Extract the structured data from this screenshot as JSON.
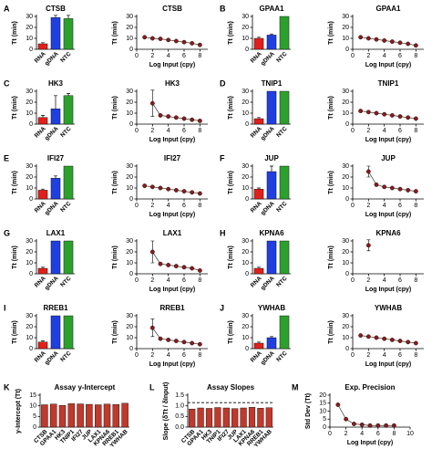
{
  "chart_data": [
    {
      "type": "bar",
      "panel": "A",
      "title": "CTSB",
      "ylabel": "Tt (min)",
      "categories": [
        "RNA",
        "gDNA",
        "NTC"
      ],
      "values": [
        5,
        29,
        28
      ],
      "errors": [
        1,
        2,
        3
      ],
      "colors": [
        "#e0201b",
        "#1f3fe0",
        "#2ca02c"
      ],
      "ylim": [
        0,
        30
      ],
      "yticks": [
        0,
        10,
        20,
        30
      ]
    },
    {
      "type": "line",
      "title": "CTSB",
      "xlabel": "Log Input (cpy)",
      "ylabel": "Tt (min)",
      "x": [
        1,
        2,
        3,
        4,
        5,
        6,
        7,
        8
      ],
      "values": [
        11,
        10,
        9.5,
        8.5,
        7.5,
        6.5,
        5.5,
        4
      ],
      "color": "#8b1a1a",
      "xlim": [
        0,
        9
      ],
      "xticks": [
        0,
        2,
        4,
        6,
        8
      ],
      "ylim": [
        0,
        30
      ],
      "yticks": [
        0,
        10,
        20,
        30
      ]
    },
    {
      "type": "bar",
      "panel": "B",
      "title": "GPAA1",
      "ylabel": "Tt (min)",
      "categories": [
        "RNA",
        "gDNA",
        "NTC"
      ],
      "values": [
        10,
        13,
        30
      ],
      "errors": [
        1,
        1,
        0
      ],
      "colors": [
        "#e0201b",
        "#1f3fe0",
        "#2ca02c"
      ],
      "ylim": [
        0,
        30
      ],
      "yticks": [
        0,
        10,
        20,
        30
      ]
    },
    {
      "type": "line",
      "title": "GPAA1",
      "xlabel": "Log Input (cpy)",
      "ylabel": "Tt (min)",
      "x": [
        1,
        2,
        3,
        4,
        5,
        6,
        7,
        8
      ],
      "values": [
        11,
        10,
        9,
        8,
        7,
        6,
        5,
        3.5
      ],
      "color": "#8b1a1a",
      "xlim": [
        0,
        9
      ],
      "xticks": [
        0,
        2,
        4,
        6,
        8
      ],
      "ylim": [
        0,
        30
      ],
      "yticks": [
        0,
        10,
        20,
        30
      ]
    },
    {
      "type": "bar",
      "panel": "C",
      "title": "HK3",
      "ylabel": "Tt (min)",
      "categories": [
        "RNA",
        "gDNA",
        "NTC"
      ],
      "values": [
        6,
        14,
        26
      ],
      "errors": [
        2,
        12,
        2
      ],
      "colors": [
        "#e0201b",
        "#1f3fe0",
        "#2ca02c"
      ],
      "ylim": [
        0,
        30
      ],
      "yticks": [
        0,
        10,
        20,
        30
      ]
    },
    {
      "type": "line",
      "title": "HK3",
      "xlabel": "Log Input (cpy)",
      "ylabel": "Tt (min)",
      "x": [
        2,
        3,
        4,
        5,
        6,
        7,
        8
      ],
      "values": [
        19,
        8,
        7,
        6,
        5,
        4,
        3
      ],
      "errors": [
        12,
        null,
        null,
        null,
        null,
        null,
        null
      ],
      "color": "#8b1a1a",
      "xlim": [
        0,
        9
      ],
      "xticks": [
        0,
        2,
        4,
        6,
        8
      ],
      "ylim": [
        0,
        30
      ],
      "yticks": [
        0,
        10,
        20,
        30
      ]
    },
    {
      "type": "bar",
      "panel": "D",
      "title": "TNIP1",
      "ylabel": "Tt (min)",
      "categories": [
        "RNA",
        "gDNA",
        "NTC"
      ],
      "values": [
        5,
        30,
        30
      ],
      "errors": [
        1,
        0,
        0
      ],
      "colors": [
        "#e0201b",
        "#1f3fe0",
        "#2ca02c"
      ],
      "ylim": [
        0,
        30
      ],
      "yticks": [
        0,
        10,
        20,
        30
      ]
    },
    {
      "type": "line",
      "title": "TNIP1",
      "xlabel": "Log Input (cpy)",
      "ylabel": "Tt (min)",
      "x": [
        1,
        2,
        3,
        4,
        5,
        6,
        7,
        8
      ],
      "values": [
        12,
        11,
        10,
        9,
        8,
        7,
        6,
        5
      ],
      "color": "#8b1a1a",
      "xlim": [
        0,
        9
      ],
      "xticks": [
        0,
        2,
        4,
        6,
        8
      ],
      "ylim": [
        0,
        30
      ],
      "yticks": [
        0,
        10,
        20,
        30
      ]
    },
    {
      "type": "bar",
      "panel": "E",
      "title": "IFI27",
      "ylabel": "Tt (min)",
      "categories": [
        "RNA",
        "gDNA",
        "NTC"
      ],
      "values": [
        8,
        19,
        30
      ],
      "errors": [
        1,
        2,
        0
      ],
      "colors": [
        "#e0201b",
        "#1f3fe0",
        "#2ca02c"
      ],
      "ylim": [
        0,
        30
      ],
      "yticks": [
        0,
        10,
        20,
        30
      ]
    },
    {
      "type": "line",
      "title": "IFI27",
      "xlabel": "Log Input (cpy)",
      "ylabel": "Tt (min)",
      "x": [
        1,
        2,
        3,
        4,
        5,
        6,
        7,
        8
      ],
      "values": [
        12,
        11,
        10,
        9,
        8,
        7,
        6,
        5
      ],
      "color": "#8b1a1a",
      "xlim": [
        0,
        9
      ],
      "xticks": [
        0,
        2,
        4,
        6,
        8
      ],
      "ylim": [
        0,
        30
      ],
      "yticks": [
        0,
        10,
        20,
        30
      ]
    },
    {
      "type": "bar",
      "panel": "F",
      "title": "JUP",
      "ylabel": "Tt (min)",
      "categories": [
        "RNA",
        "gDNA",
        "NTC"
      ],
      "values": [
        9,
        25,
        30
      ],
      "errors": [
        1,
        5,
        0
      ],
      "colors": [
        "#e0201b",
        "#1f3fe0",
        "#2ca02c"
      ],
      "ylim": [
        0,
        30
      ],
      "yticks": [
        0,
        10,
        20,
        30
      ]
    },
    {
      "type": "line",
      "title": "JUP",
      "xlabel": "Log Input (cpy)",
      "ylabel": "Tt (min)",
      "x": [
        2,
        3,
        4,
        5,
        6,
        7,
        8
      ],
      "values": [
        25,
        13,
        11,
        10,
        9,
        8,
        7
      ],
      "errors": [
        5,
        null,
        null,
        null,
        null,
        null,
        null
      ],
      "color": "#8b1a1a",
      "xlim": [
        0,
        9
      ],
      "xticks": [
        0,
        2,
        4,
        6,
        8
      ],
      "ylim": [
        0,
        30
      ],
      "yticks": [
        0,
        10,
        20,
        30
      ]
    },
    {
      "type": "bar",
      "panel": "G",
      "title": "LAX1",
      "ylabel": "Tt (min)",
      "categories": [
        "RNA",
        "gDNA",
        "NTC"
      ],
      "values": [
        5,
        30,
        30
      ],
      "errors": [
        1,
        0,
        0
      ],
      "colors": [
        "#e0201b",
        "#1f3fe0",
        "#2ca02c"
      ],
      "ylim": [
        0,
        30
      ],
      "yticks": [
        0,
        10,
        20,
        30
      ]
    },
    {
      "type": "line",
      "title": "LAX1",
      "xlabel": "Log Input (cpy)",
      "ylabel": "Tt (min)",
      "x": [
        2,
        3,
        4,
        5,
        6,
        7,
        8
      ],
      "values": [
        20,
        9,
        8,
        7,
        6,
        5,
        3
      ],
      "errors": [
        10,
        null,
        null,
        null,
        null,
        null,
        null
      ],
      "color": "#8b1a1a",
      "xlim": [
        0,
        9
      ],
      "xticks": [
        0,
        2,
        4,
        6,
        8
      ],
      "ylim": [
        0,
        30
      ],
      "yticks": [
        0,
        10,
        20,
        30
      ]
    },
    {
      "type": "bar",
      "panel": "H",
      "title": "KPNA6",
      "ylabel": "Tt (min)",
      "categories": [
        "RNA",
        "gDNA",
        "NTC"
      ],
      "values": [
        5,
        30,
        30
      ],
      "errors": [
        1,
        0,
        0
      ],
      "colors": [
        "#e0201b",
        "#1f3fe0",
        "#2ca02c"
      ],
      "ylim": [
        0,
        30
      ],
      "yticks": [
        0,
        10,
        20,
        30
      ]
    },
    {
      "type": "line",
      "title": "KPNA6",
      "xlabel": "Log Input (cpy)",
      "ylabel": "Tt (min)",
      "x": [
        2
      ],
      "values": [
        26
      ],
      "errors": [
        5
      ],
      "color": "#8b1a1a",
      "xlim": [
        0,
        9
      ],
      "xticks": [
        0,
        2,
        4,
        6,
        8
      ],
      "ylim": [
        0,
        30
      ],
      "yticks": [
        0,
        10,
        20,
        30
      ]
    },
    {
      "type": "bar",
      "panel": "I",
      "title": "RREB1",
      "ylabel": "Tt (min)",
      "categories": [
        "RNA",
        "gDNA",
        "NTC"
      ],
      "values": [
        6,
        30,
        30
      ],
      "errors": [
        1,
        0,
        0
      ],
      "colors": [
        "#e0201b",
        "#1f3fe0",
        "#2ca02c"
      ],
      "ylim": [
        0,
        30
      ],
      "yticks": [
        0,
        10,
        20,
        30
      ]
    },
    {
      "type": "line",
      "title": "RREB1",
      "xlabel": "Log Input (cpy)",
      "ylabel": "Tt (min)",
      "x": [
        2,
        3,
        4,
        5,
        6,
        7,
        8
      ],
      "values": [
        19,
        9,
        8,
        7,
        6,
        5,
        4
      ],
      "errors": [
        8,
        null,
        null,
        null,
        null,
        null,
        null
      ],
      "color": "#8b1a1a",
      "xlim": [
        0,
        9
      ],
      "xticks": [
        0,
        2,
        4,
        6,
        8
      ],
      "ylim": [
        0,
        30
      ],
      "yticks": [
        0,
        10,
        20,
        30
      ]
    },
    {
      "type": "bar",
      "panel": "J",
      "title": "YWHAB",
      "ylabel": "Tt (min)",
      "categories": [
        "RNA",
        "gDNA",
        "NTC"
      ],
      "values": [
        5,
        10,
        30
      ],
      "errors": [
        1,
        1,
        0
      ],
      "colors": [
        "#e0201b",
        "#1f3fe0",
        "#2ca02c"
      ],
      "ylim": [
        0,
        30
      ],
      "yticks": [
        0,
        10,
        20,
        30
      ]
    },
    {
      "type": "line",
      "title": "YWHAB",
      "xlabel": "Log Input (cpy)",
      "ylabel": "Tt (min)",
      "x": [
        1,
        2,
        3,
        4,
        5,
        6,
        7,
        8
      ],
      "values": [
        12,
        11,
        10,
        9,
        8,
        7,
        6,
        5
      ],
      "color": "#8b1a1a",
      "xlim": [
        0,
        9
      ],
      "xticks": [
        0,
        2,
        4,
        6,
        8
      ],
      "ylim": [
        0,
        30
      ],
      "yticks": [
        0,
        10,
        20,
        30
      ]
    },
    {
      "type": "bar",
      "panel": "K",
      "title": "Assay y-Intercept",
      "ylabel": "y-Intercept (Tt)",
      "categories": [
        "CTSB",
        "GPAA1",
        "HK3",
        "TNIP1",
        "IFI27",
        "JUP",
        "LAX1",
        "KPNA6",
        "RREB1",
        "YWHAB"
      ],
      "values": [
        10.5,
        10.8,
        10.2,
        11,
        10.9,
        10.7,
        10.5,
        10.8,
        10.6,
        11.2
      ],
      "color": "#c0392b",
      "ylim": [
        0,
        15
      ],
      "yticks": [
        0,
        5,
        10,
        15
      ]
    },
    {
      "type": "bar",
      "panel": "L",
      "title": "Assay Slopes",
      "ylabel": "Slope (δTt / δInput)",
      "categories": [
        "CTSB",
        "GPAA1",
        "HK3",
        "TNIP1",
        "IFI27",
        "JUP",
        "LAX1",
        "KPNA6",
        "RREB1",
        "YWHAB"
      ],
      "values": [
        0.85,
        0.9,
        0.88,
        0.92,
        0.9,
        0.87,
        0.9,
        0.93,
        0.89,
        0.91
      ],
      "color": "#c0392b",
      "reference_value": 1.15,
      "ylim": [
        0,
        1.5
      ],
      "yticks": [
        {
          "value": 0,
          "label": "0.0"
        },
        {
          "value": 0.5,
          "label": "0.5"
        },
        {
          "value": 1,
          "label": "1.0"
        },
        {
          "value": 1.5,
          "label": "1.5"
        }
      ]
    },
    {
      "type": "line",
      "panel": "M",
      "title": "Exp. Precision",
      "xlabel": "Log Input (cpy)",
      "ylabel": "Std Dev (Tt)",
      "x": [
        1,
        2,
        3,
        4,
        5,
        6,
        7,
        8
      ],
      "values": [
        14,
        5,
        2,
        1.5,
        1,
        1,
        1,
        1
      ],
      "color": "#8b1a1a",
      "xlim": [
        0,
        10
      ],
      "xticks": [
        0,
        2,
        4,
        6,
        8,
        10
      ],
      "ylim": [
        0,
        20
      ],
      "yticks": [
        0,
        5,
        10,
        15,
        20
      ]
    }
  ]
}
